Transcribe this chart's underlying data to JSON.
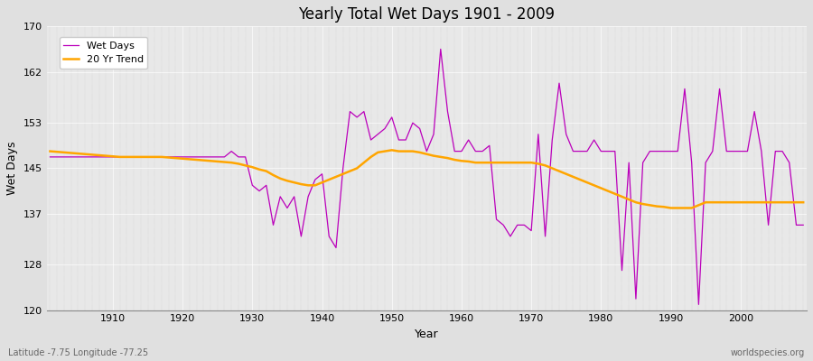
{
  "title": "Yearly Total Wet Days 1901 - 2009",
  "xlabel": "Year",
  "ylabel": "Wet Days",
  "lat_lon_label": "Latitude -7.75 Longitude -77.25",
  "source_label": "worldspecies.org",
  "ylim": [
    120,
    170
  ],
  "yticks": [
    120,
    128,
    137,
    145,
    153,
    162,
    170
  ],
  "line_color": "#bb00bb",
  "trend_color": "#ffa500",
  "bg_color": "#e0e0e0",
  "plot_bg_color": "#e8e8e8",
  "years": [
    1901,
    1902,
    1903,
    1904,
    1905,
    1906,
    1907,
    1908,
    1909,
    1910,
    1911,
    1912,
    1913,
    1914,
    1915,
    1916,
    1917,
    1918,
    1919,
    1920,
    1921,
    1922,
    1923,
    1924,
    1925,
    1926,
    1927,
    1928,
    1929,
    1930,
    1931,
    1932,
    1933,
    1934,
    1935,
    1936,
    1937,
    1938,
    1939,
    1940,
    1941,
    1942,
    1943,
    1944,
    1945,
    1946,
    1947,
    1948,
    1949,
    1950,
    1951,
    1952,
    1953,
    1954,
    1955,
    1956,
    1957,
    1958,
    1959,
    1960,
    1961,
    1962,
    1963,
    1964,
    1965,
    1966,
    1967,
    1968,
    1969,
    1970,
    1971,
    1972,
    1973,
    1974,
    1975,
    1976,
    1977,
    1978,
    1979,
    1980,
    1981,
    1982,
    1983,
    1984,
    1985,
    1986,
    1987,
    1988,
    1989,
    1990,
    1991,
    1992,
    1993,
    1994,
    1995,
    1996,
    1997,
    1998,
    1999,
    2000,
    2001,
    2002,
    2003,
    2004,
    2005,
    2006,
    2007,
    2008,
    2009
  ],
  "wet_days": [
    147,
    147,
    147,
    147,
    147,
    147,
    147,
    147,
    147,
    147,
    147,
    147,
    147,
    147,
    147,
    147,
    147,
    147,
    147,
    147,
    147,
    147,
    147,
    147,
    147,
    147,
    148,
    147,
    147,
    142,
    141,
    142,
    135,
    140,
    138,
    140,
    133,
    140,
    143,
    144,
    133,
    131,
    145,
    155,
    154,
    155,
    150,
    151,
    152,
    154,
    150,
    150,
    153,
    152,
    148,
    151,
    166,
    155,
    148,
    148,
    150,
    148,
    148,
    149,
    136,
    135,
    133,
    135,
    135,
    134,
    151,
    133,
    150,
    160,
    151,
    148,
    148,
    148,
    150,
    148,
    148,
    148,
    127,
    146,
    122,
    146,
    148,
    148,
    148,
    148,
    148,
    159,
    146,
    121,
    146,
    148,
    159,
    148,
    148,
    148,
    148,
    155,
    148,
    135,
    148,
    148,
    146,
    135,
    135
  ],
  "trend": [
    148.0,
    147.9,
    147.8,
    147.7,
    147.6,
    147.5,
    147.4,
    147.3,
    147.2,
    147.1,
    147.0,
    147.0,
    147.0,
    147.0,
    147.0,
    147.0,
    147.0,
    146.9,
    146.8,
    146.7,
    146.6,
    146.5,
    146.4,
    146.3,
    146.2,
    146.1,
    146.0,
    145.8,
    145.5,
    145.2,
    144.8,
    144.5,
    143.8,
    143.2,
    142.8,
    142.5,
    142.2,
    142.0,
    142.0,
    142.5,
    143.0,
    143.5,
    144.0,
    144.5,
    145.0,
    146.0,
    147.0,
    147.8,
    148.0,
    148.2,
    148.0,
    148.0,
    148.0,
    147.8,
    147.5,
    147.2,
    147.0,
    146.8,
    146.5,
    146.3,
    146.2,
    146.0,
    146.0,
    146.0,
    146.0,
    146.0,
    146.0,
    146.0,
    146.0,
    146.0,
    145.8,
    145.5,
    145.0,
    144.5,
    144.0,
    143.5,
    143.0,
    142.5,
    142.0,
    141.5,
    141.0,
    140.5,
    140.0,
    139.5,
    139.0,
    138.7,
    138.5,
    138.3,
    138.2,
    138.0,
    138.0,
    138.0,
    138.0,
    138.5,
    139.0,
    139.0,
    139.0,
    139.0,
    139.0,
    139.0,
    139.0,
    139.0,
    139.0,
    139.0,
    139.0,
    139.0,
    139.0,
    139.0,
    139.0
  ]
}
